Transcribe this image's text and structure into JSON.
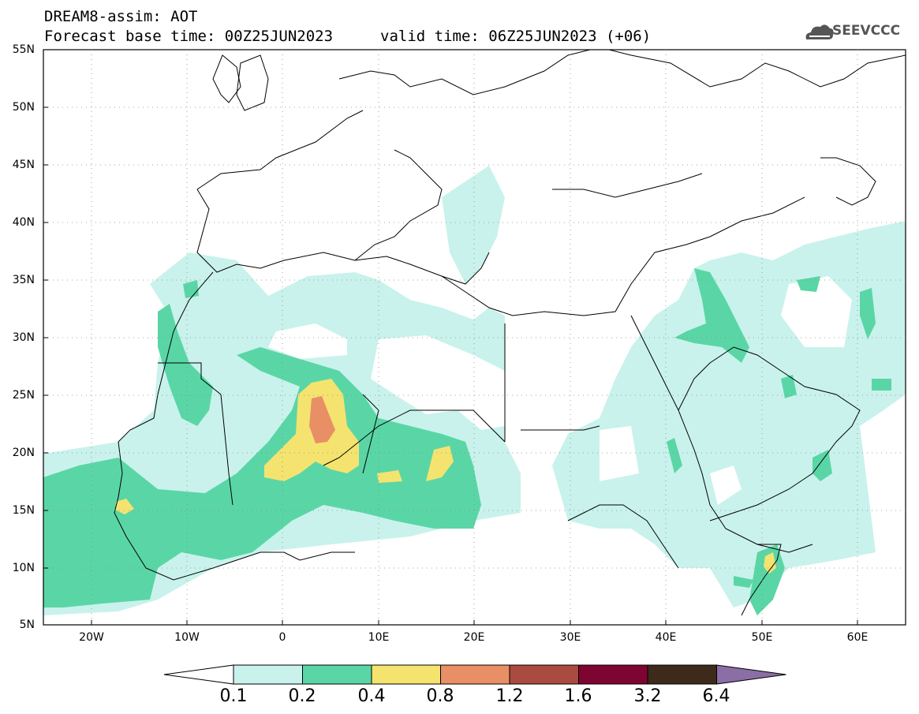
{
  "header": {
    "title": "DREAM8-assim: AOT",
    "base_time": "Forecast base time: 00Z25JUN2023",
    "valid_time": "valid time: 06Z25JUN2023 (+06)",
    "logo_text": "SEEVCCC"
  },
  "axes": {
    "lat_labels": [
      "55N",
      "50N",
      "45N",
      "40N",
      "35N",
      "30N",
      "25N",
      "20N",
      "15N",
      "10N",
      "5N"
    ],
    "lon_labels": [
      "20W",
      "10W",
      "0",
      "10E",
      "20E",
      "30E",
      "40E",
      "50E",
      "60E"
    ],
    "lon_range": [
      -25,
      65
    ],
    "lat_range": [
      5,
      55
    ]
  },
  "colorbar": {
    "labels": [
      "0.1",
      "0.2",
      "0.4",
      "0.8",
      "1.2",
      "1.6",
      "3.2",
      "6.4"
    ],
    "colors": [
      "#ffffff",
      "#c9f2ec",
      "#5ad6a6",
      "#f5e370",
      "#e88f66",
      "#aa4b3f",
      "#7e0532",
      "#3d2a1a",
      "#8b6ea6"
    ]
  },
  "colors": {
    "c1": "#c9f2ec",
    "c2": "#5ad6a6",
    "c3": "#f5e370",
    "c4": "#e88f66"
  }
}
